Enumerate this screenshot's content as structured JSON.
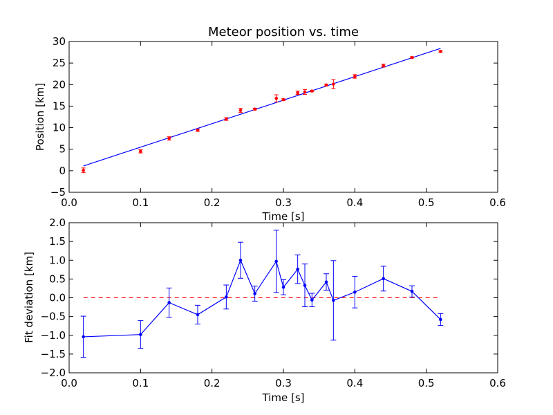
{
  "colors": {
    "background": "#ffffff",
    "fit_line": "#0000ff",
    "data_points": "#ff0000",
    "deviation_line": "#0000ff",
    "zero_line": "#ff0000",
    "axes": "#000000"
  },
  "chart_data": [
    {
      "type": "scatter",
      "title": "Meteor position vs. time",
      "xlabel": "Time [s]",
      "ylabel": "Position [km]",
      "xlim": [
        0.0,
        0.6
      ],
      "ylim": [
        -5,
        30
      ],
      "xticks": [
        "0.0",
        "0.1",
        "0.2",
        "0.3",
        "0.4",
        "0.5",
        "0.6"
      ],
      "yticks": [
        "−5",
        "0",
        "5",
        "10",
        "15",
        "20",
        "25",
        "30"
      ],
      "grid": false,
      "fit_line": {
        "x": [
          0.02,
          0.52
        ],
        "y": [
          1.1,
          28.4
        ]
      },
      "series": [
        {
          "x": [
            0.02,
            0.1,
            0.14,
            0.18,
            0.22,
            0.24,
            0.26,
            0.29,
            0.3,
            0.32,
            0.33,
            0.34,
            0.36,
            0.37,
            0.4,
            0.44,
            0.48,
            0.52
          ],
          "y": [
            0.1,
            4.5,
            7.5,
            9.4,
            12.0,
            14.0,
            14.3,
            16.8,
            16.5,
            18.1,
            18.3,
            18.5,
            19.9,
            20.1,
            21.9,
            24.4,
            26.3,
            27.7
          ],
          "err": [
            0.55,
            0.37,
            0.39,
            0.25,
            0.32,
            0.48,
            0.2,
            0.83,
            0.2,
            0.38,
            0.57,
            0.18,
            0.22,
            1.06,
            0.42,
            0.33,
            0.15,
            0.16
          ]
        }
      ]
    },
    {
      "type": "line",
      "xlabel": "Time [s]",
      "ylabel": "Fit deviation [km]",
      "xlim": [
        0.0,
        0.6
      ],
      "ylim": [
        -2.0,
        2.0
      ],
      "xticks": [
        "0.0",
        "0.1",
        "0.2",
        "0.3",
        "0.4",
        "0.5",
        "0.6"
      ],
      "yticks": [
        "−2.0",
        "−1.5",
        "−1.0",
        "−0.5",
        "0.0",
        "0.5",
        "1.0",
        "1.5",
        "2.0"
      ],
      "grid": false,
      "zero_line": {
        "x": [
          0.02,
          0.52
        ],
        "y": 0.0
      },
      "series": [
        {
          "x": [
            0.02,
            0.1,
            0.14,
            0.18,
            0.22,
            0.24,
            0.26,
            0.29,
            0.3,
            0.32,
            0.33,
            0.34,
            0.36,
            0.37,
            0.4,
            0.44,
            0.48,
            0.52
          ],
          "y": [
            -1.04,
            -0.98,
            -0.13,
            -0.45,
            0.02,
            1.0,
            0.11,
            0.97,
            0.28,
            0.76,
            0.33,
            -0.06,
            0.42,
            -0.07,
            0.15,
            0.51,
            0.17,
            -0.58
          ],
          "err": [
            0.55,
            0.37,
            0.39,
            0.25,
            0.32,
            0.48,
            0.2,
            0.83,
            0.2,
            0.38,
            0.57,
            0.18,
            0.22,
            1.06,
            0.42,
            0.33,
            0.15,
            0.16
          ]
        }
      ]
    }
  ]
}
